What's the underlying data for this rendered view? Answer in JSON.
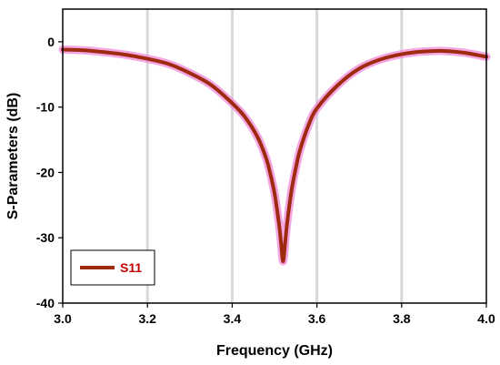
{
  "chart_data": {
    "type": "line",
    "xlabel": "Frequency (GHz)",
    "ylabel": "S-Parameters (dB)",
    "xlim": [
      3.0,
      4.0
    ],
    "ylim": [
      -40,
      5
    ],
    "x_ticks": [
      3.0,
      3.2,
      3.4,
      3.6,
      3.8,
      4.0
    ],
    "x_tick_labels": [
      "3.0",
      "3.2",
      "3.4",
      "3.6",
      "3.8",
      "4.0"
    ],
    "y_ticks": [
      0,
      -10,
      -20,
      -30,
      -40
    ],
    "y_tick_labels": [
      "0",
      "-10",
      "-20",
      "-30",
      "-40"
    ],
    "grid": "vertical",
    "legend_placement": "bottom-left",
    "colors": {
      "line": "#9e2a10",
      "glow": "#f08ad8",
      "legend_text": "#c00000",
      "grid": "#d9d9d9"
    },
    "series": [
      {
        "name": "S11",
        "x": [
          3.0,
          3.05,
          3.1,
          3.15,
          3.2,
          3.25,
          3.3,
          3.35,
          3.4,
          3.43,
          3.46,
          3.48,
          3.49,
          3.5,
          3.51,
          3.515,
          3.52,
          3.525,
          3.53,
          3.54,
          3.55,
          3.56,
          3.58,
          3.6,
          3.65,
          3.7,
          3.75,
          3.8,
          3.85,
          3.9,
          3.95,
          4.0
        ],
        "y": [
          -1.2,
          -1.3,
          -1.6,
          -2.0,
          -2.6,
          -3.4,
          -4.8,
          -6.6,
          -9.4,
          -11.5,
          -14.6,
          -17.8,
          -20.2,
          -23.2,
          -27.6,
          -30.5,
          -33.6,
          -30.8,
          -27.6,
          -22.8,
          -19.4,
          -16.6,
          -12.8,
          -10.2,
          -6.6,
          -4.1,
          -2.7,
          -1.9,
          -1.5,
          -1.4,
          -1.7,
          -2.3
        ]
      }
    ]
  }
}
